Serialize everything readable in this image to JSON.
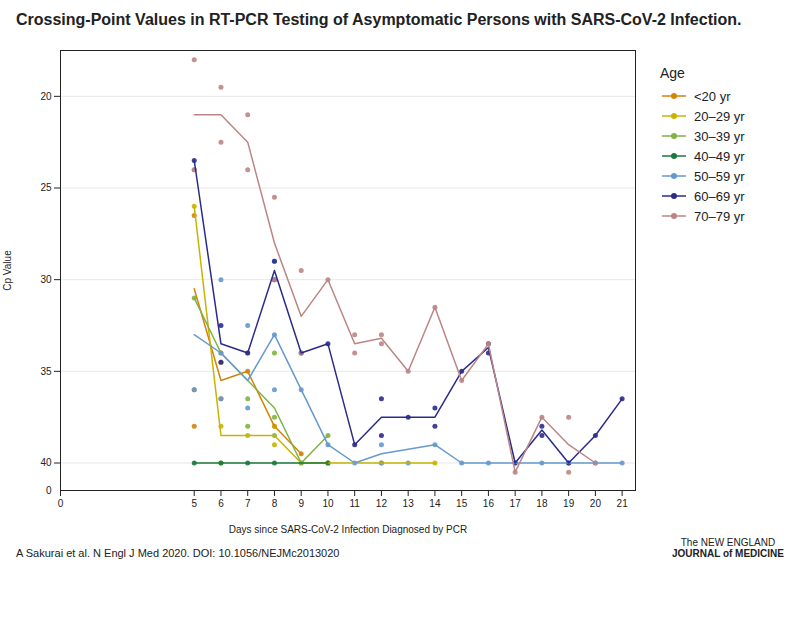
{
  "chart_data": {
    "type": "scatter",
    "title": "Crossing-Point Values in RT-PCR Testing of Asymptomatic Persons with SARS-CoV-2 Infection.",
    "xlabel": "Days since SARS-CoV-2 Infection Diagnosed by PCR",
    "ylabel": "Cp Value",
    "legend_title": "Age",
    "caption": "A Sakurai et al. N Engl J Med 2020. DOI: 10.1056/NEJMc2013020",
    "logo": [
      "The NEW ENGLAND",
      "JOURNAL of MEDICINE"
    ],
    "annotations": [
      {
        "text": "0"
      }
    ],
    "xlim": [
      0,
      21.5
    ],
    "ylim": [
      41.5,
      17.5
    ],
    "xticks": [
      0,
      5,
      6,
      7,
      8,
      9,
      10,
      11,
      12,
      13,
      14,
      15,
      16,
      17,
      18,
      19,
      20,
      21
    ],
    "yticks": [
      20,
      25,
      30,
      35,
      40
    ],
    "grid": true,
    "series": [
      {
        "name": "<20 yr",
        "color": "#d4820a",
        "x": [
          5,
          5,
          5,
          6,
          6,
          7,
          8,
          9
        ],
        "values": [
          26.5,
          36.0,
          38.0,
          34.5,
          36.5,
          35.0,
          38.0,
          39.5
        ],
        "line": {
          "x": [
            5,
            6,
            7,
            8,
            9
          ],
          "values": [
            30.5,
            35.5,
            35.0,
            38.0,
            39.5
          ]
        }
      },
      {
        "name": "20–29 yr",
        "color": "#c8b400",
        "x": [
          5,
          6,
          6,
          7,
          8,
          8,
          9,
          10,
          10,
          12,
          14
        ],
        "values": [
          26.0,
          38.0,
          40.0,
          38.5,
          38.0,
          39.0,
          40.0,
          40.0,
          40.0,
          40.0,
          40.0
        ],
        "line": {
          "x": [
            5,
            6,
            7,
            8,
            9,
            10,
            12,
            14
          ],
          "values": [
            26.0,
            38.5,
            38.5,
            38.5,
            40.0,
            40.0,
            40.0,
            40.0
          ]
        }
      },
      {
        "name": "30–39 yr",
        "color": "#7fb241",
        "x": [
          5,
          6,
          7,
          7,
          7,
          8,
          8,
          8,
          9,
          10
        ],
        "values": [
          31.0,
          34.0,
          34.0,
          36.5,
          38.0,
          34.0,
          37.5,
          38.5,
          40.0,
          38.5
        ],
        "line": {
          "x": [
            5,
            6,
            7,
            8,
            9,
            10
          ],
          "values": [
            31.0,
            34.0,
            35.5,
            37.0,
            40.0,
            38.5
          ]
        }
      },
      {
        "name": "40–49 yr",
        "color": "#1a7a3c",
        "x": [
          5,
          6,
          7,
          8,
          10
        ],
        "values": [
          40.0,
          40.0,
          40.0,
          40.0,
          40.0
        ],
        "line": {
          "x": [
            5,
            6,
            7,
            8,
            10
          ],
          "values": [
            40.0,
            40.0,
            40.0,
            40.0,
            40.0
          ]
        }
      },
      {
        "name": "50–59 yr",
        "color": "#6699cc",
        "x": [
          5,
          5,
          6,
          6,
          6,
          7,
          7,
          8,
          8,
          8,
          9,
          10,
          11,
          12,
          12,
          13,
          14,
          15,
          16,
          17,
          18,
          19,
          20,
          21
        ],
        "values": [
          24.0,
          36.0,
          30.0,
          34.0,
          36.5,
          32.5,
          37.0,
          29.0,
          33.0,
          36.0,
          36.0,
          39.0,
          40.0,
          39.0,
          40.0,
          40.0,
          39.0,
          40.0,
          40.0,
          40.0,
          40.0,
          40.0,
          40.0,
          40.0
        ],
        "line": {
          "x": [
            5,
            6,
            7,
            8,
            9,
            10,
            11,
            12,
            14,
            15,
            16,
            17,
            19,
            20,
            21
          ],
          "values": [
            33.0,
            34.0,
            35.5,
            33.0,
            36.0,
            39.0,
            40.0,
            39.5,
            39.0,
            40.0,
            40.0,
            40.0,
            40.0,
            40.0,
            40.0
          ]
        }
      },
      {
        "name": "60–69 yr",
        "color": "#2b2b8c",
        "x": [
          5,
          6,
          6,
          7,
          8,
          8,
          9,
          10,
          11,
          12,
          12,
          13,
          14,
          14,
          15,
          16,
          16,
          17,
          18,
          18,
          19,
          20,
          21
        ],
        "values": [
          23.5,
          32.5,
          34.5,
          34.0,
          29.0,
          30.0,
          34.0,
          33.5,
          39.0,
          36.5,
          38.5,
          37.5,
          37.0,
          38.0,
          35.0,
          33.5,
          34.0,
          40.0,
          38.0,
          38.5,
          40.0,
          38.5,
          36.5
        ],
        "line": {
          "x": [
            5,
            6,
            7,
            8,
            9,
            10,
            11,
            12,
            13,
            14,
            15,
            16,
            17,
            18,
            19,
            20,
            21
          ],
          "values": [
            23.5,
            33.5,
            34.0,
            29.5,
            34.0,
            33.5,
            39.0,
            37.5,
            37.5,
            37.5,
            35.0,
            33.7,
            40.0,
            38.2,
            40.0,
            38.5,
            36.5
          ]
        }
      },
      {
        "name": "70–79 yr",
        "color": "#bc8585",
        "x": [
          5,
          5,
          6,
          6,
          7,
          7,
          8,
          8,
          9,
          9,
          10,
          11,
          11,
          12,
          12,
          13,
          14,
          15,
          16,
          17,
          18,
          19,
          19,
          20
        ],
        "values": [
          18.0,
          24.0,
          19.5,
          22.5,
          21.0,
          24.0,
          25.5,
          30.0,
          29.5,
          34.0,
          30.0,
          33.0,
          34.0,
          33.0,
          33.5,
          35.0,
          31.5,
          35.5,
          33.5,
          40.5,
          37.5,
          37.5,
          40.5,
          40.0
        ],
        "line": {
          "x": [
            5,
            6,
            7,
            8,
            9,
            10,
            11,
            12,
            13,
            14,
            15,
            16,
            17,
            18,
            19,
            20
          ],
          "values": [
            21.0,
            21.0,
            22.5,
            28.0,
            32.0,
            30.0,
            33.5,
            33.2,
            35.0,
            31.5,
            35.5,
            33.5,
            40.5,
            37.5,
            39.0,
            40.0
          ]
        }
      }
    ]
  }
}
